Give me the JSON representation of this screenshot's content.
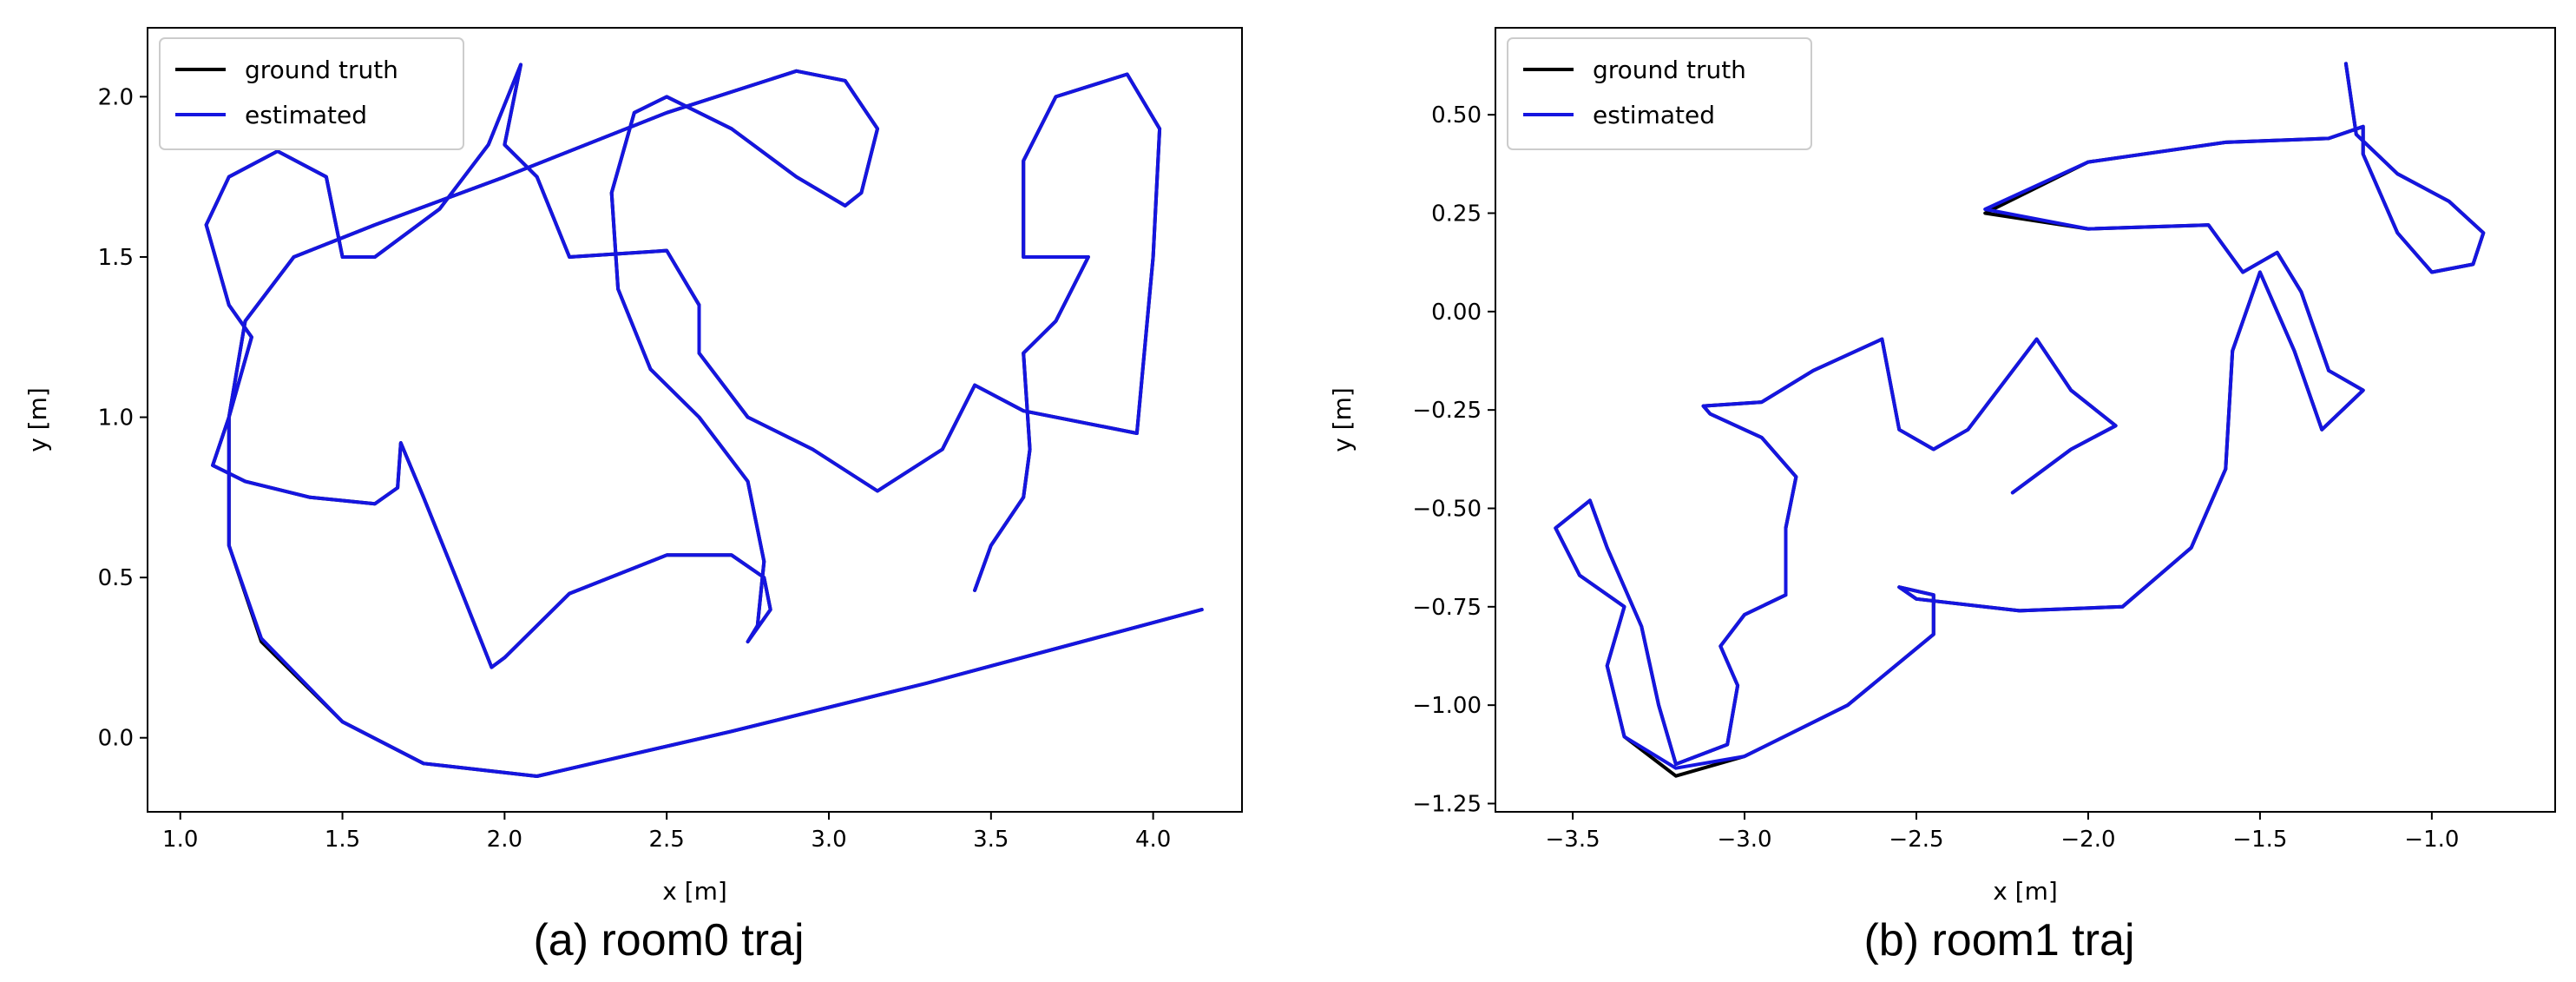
{
  "chart_data": [
    {
      "type": "line",
      "caption": "(a) room0 traj",
      "xlabel": "x [m]",
      "ylabel": "y [m]",
      "legend": "upper left",
      "xlim": [
        0.899,
        4.274
      ],
      "ylim": [
        -0.231,
        2.215
      ],
      "xticks": [
        {
          "value": 1.0,
          "label": "1.0"
        },
        {
          "value": 1.5,
          "label": "1.5"
        },
        {
          "value": 2.0,
          "label": "2.0"
        },
        {
          "value": 2.5,
          "label": "2.5"
        },
        {
          "value": 3.0,
          "label": "3.0"
        },
        {
          "value": 3.5,
          "label": "3.5"
        },
        {
          "value": 4.0,
          "label": "4.0"
        }
      ],
      "yticks": [
        {
          "value": 0.0,
          "label": "0.0"
        },
        {
          "value": 0.5,
          "label": "0.5"
        },
        {
          "value": 1.0,
          "label": "1.0"
        },
        {
          "value": 1.5,
          "label": "1.5"
        },
        {
          "value": 2.0,
          "label": "2.0"
        }
      ],
      "series": [
        {
          "name": "ground truth",
          "color": "#000000",
          "x": [
            4.15,
            3.3,
            2.7,
            2.1,
            1.75,
            1.5,
            1.25,
            1.15,
            1.15,
            1.2,
            1.35,
            1.6,
            2.0,
            2.5,
            2.9,
            3.05,
            3.15,
            3.1,
            3.05,
            2.9,
            2.7,
            2.5,
            2.4,
            2.33,
            2.35,
            2.45,
            2.6,
            2.75,
            2.8,
            2.78,
            2.75,
            2.82,
            2.8,
            2.7,
            2.5,
            2.2,
            2.0,
            1.96,
            1.85,
            1.75,
            1.68,
            1.67,
            1.6,
            1.4,
            1.2,
            1.1,
            1.15,
            1.22,
            1.15,
            1.08,
            1.15,
            1.3,
            1.45,
            1.5,
            1.6,
            1.8,
            1.95,
            2.05,
            2.0,
            2.1,
            2.2,
            2.5,
            2.6,
            2.6,
            2.75,
            2.95,
            3.15,
            3.35,
            3.45,
            3.6,
            3.8,
            3.95,
            4.0,
            4.02,
            3.92,
            3.7,
            3.6,
            3.6,
            3.8,
            3.7,
            3.6,
            3.62,
            3.6,
            3.5,
            3.45
          ],
          "values": [
            0.4,
            0.17,
            0.02,
            -0.12,
            -0.08,
            0.05,
            0.3,
            0.6,
            1.0,
            1.3,
            1.5,
            1.6,
            1.75,
            1.95,
            2.08,
            2.05,
            1.9,
            1.7,
            1.66,
            1.75,
            1.9,
            2.0,
            1.95,
            1.7,
            1.4,
            1.15,
            1.0,
            0.8,
            0.55,
            0.35,
            0.3,
            0.4,
            0.5,
            0.57,
            0.57,
            0.45,
            0.25,
            0.22,
            0.5,
            0.75,
            0.92,
            0.78,
            0.73,
            0.75,
            0.8,
            0.85,
            1.0,
            1.25,
            1.35,
            1.6,
            1.75,
            1.83,
            1.75,
            1.5,
            1.5,
            1.65,
            1.85,
            2.1,
            1.85,
            1.75,
            1.5,
            1.52,
            1.35,
            1.2,
            1.0,
            0.9,
            0.77,
            0.9,
            1.1,
            1.02,
            0.98,
            0.95,
            1.5,
            1.9,
            2.07,
            2.0,
            1.8,
            1.5,
            1.5,
            1.3,
            1.2,
            0.9,
            0.75,
            0.6,
            0.46
          ]
        },
        {
          "name": "estimated",
          "color": "#1515e0",
          "x": [
            4.15,
            3.3,
            2.7,
            2.1,
            1.75,
            1.5,
            1.25,
            1.15,
            1.15,
            1.2,
            1.35,
            1.6,
            2.0,
            2.5,
            2.9,
            3.05,
            3.15,
            3.1,
            3.05,
            2.9,
            2.7,
            2.5,
            2.4,
            2.33,
            2.35,
            2.45,
            2.6,
            2.75,
            2.8,
            2.78,
            2.75,
            2.82,
            2.8,
            2.7,
            2.5,
            2.2,
            2.0,
            1.96,
            1.85,
            1.75,
            1.68,
            1.67,
            1.6,
            1.4,
            1.2,
            1.1,
            1.15,
            1.22,
            1.15,
            1.08,
            1.15,
            1.3,
            1.45,
            1.5,
            1.6,
            1.8,
            1.95,
            2.05,
            2.0,
            2.1,
            2.2,
            2.5,
            2.6,
            2.6,
            2.75,
            2.95,
            3.15,
            3.35,
            3.45,
            3.6,
            3.8,
            3.95,
            4.0,
            4.02,
            3.92,
            3.7,
            3.6,
            3.6,
            3.8,
            3.7,
            3.6,
            3.62,
            3.6,
            3.5,
            3.45
          ],
          "values": [
            0.4,
            0.17,
            0.02,
            -0.12,
            -0.08,
            0.05,
            0.31,
            0.6,
            1.0,
            1.3,
            1.5,
            1.6,
            1.75,
            1.95,
            2.08,
            2.05,
            1.9,
            1.7,
            1.66,
            1.75,
            1.9,
            2.0,
            1.95,
            1.7,
            1.4,
            1.15,
            1.0,
            0.8,
            0.55,
            0.35,
            0.3,
            0.4,
            0.5,
            0.57,
            0.57,
            0.45,
            0.25,
            0.22,
            0.5,
            0.75,
            0.92,
            0.78,
            0.73,
            0.75,
            0.8,
            0.85,
            1.0,
            1.25,
            1.35,
            1.6,
            1.75,
            1.83,
            1.75,
            1.5,
            1.5,
            1.65,
            1.85,
            2.1,
            1.85,
            1.75,
            1.5,
            1.52,
            1.35,
            1.2,
            1.0,
            0.9,
            0.77,
            0.9,
            1.1,
            1.02,
            0.98,
            0.95,
            1.5,
            1.9,
            2.07,
            2.0,
            1.8,
            1.5,
            1.5,
            1.3,
            1.2,
            0.9,
            0.75,
            0.6,
            0.46
          ]
        }
      ]
    },
    {
      "type": "line",
      "caption": "(b) room1 traj",
      "xlabel": "x [m]",
      "ylabel": "y [m]",
      "legend": "upper left",
      "xlim": [
        -3.725,
        -0.641
      ],
      "ylim": [
        -1.271,
        0.721
      ],
      "xticks": [
        {
          "value": -3.5,
          "label": "−3.5"
        },
        {
          "value": -3.0,
          "label": "−3.0"
        },
        {
          "value": -2.5,
          "label": "−2.5"
        },
        {
          "value": -2.0,
          "label": "−2.0"
        },
        {
          "value": -1.5,
          "label": "−1.5"
        },
        {
          "value": -1.0,
          "label": "−1.0"
        }
      ],
      "yticks": [
        {
          "value": 0.5,
          "label": "0.50"
        },
        {
          "value": 0.25,
          "label": "0.25"
        },
        {
          "value": 0.0,
          "label": "0.00"
        },
        {
          "value": -0.25,
          "label": "−0.25"
        },
        {
          "value": -0.5,
          "label": "−0.50"
        },
        {
          "value": -0.75,
          "label": "−0.75"
        },
        {
          "value": -1.0,
          "label": "−1.00"
        },
        {
          "value": -1.25,
          "label": "−1.25"
        }
      ],
      "series": [
        {
          "name": "ground truth",
          "color": "#000000",
          "x": [
            -1.25,
            -1.22,
            -1.1,
            -0.95,
            -0.85,
            -0.88,
            -1.0,
            -1.1,
            -1.2,
            -1.2,
            -1.3,
            -1.6,
            -2.0,
            -2.3,
            -2.0,
            -1.65,
            -1.55,
            -1.45,
            -1.38,
            -1.3,
            -1.2,
            -1.32,
            -1.4,
            -1.5,
            -1.58,
            -1.6,
            -1.7,
            -1.9,
            -2.2,
            -2.5,
            -2.55,
            -2.45,
            -2.45,
            -2.7,
            -3.0,
            -3.2,
            -3.35,
            -3.4,
            -3.35,
            -3.48,
            -3.55,
            -3.45,
            -3.4,
            -3.3,
            -3.25,
            -3.2,
            -3.05,
            -3.02,
            -3.07,
            -3.0,
            -2.88,
            -2.88,
            -2.85,
            -2.95,
            -3.1,
            -3.12,
            -2.95,
            -2.8,
            -2.6,
            -2.55,
            -2.45,
            -2.35,
            -2.15,
            -2.05,
            -1.92,
            -2.05,
            -2.22
          ],
          "values": [
            0.63,
            0.45,
            0.35,
            0.28,
            0.2,
            0.12,
            0.1,
            0.2,
            0.4,
            0.47,
            0.44,
            0.43,
            0.38,
            0.25,
            0.21,
            0.22,
            0.1,
            0.15,
            0.05,
            -0.15,
            -0.2,
            -0.3,
            -0.1,
            0.1,
            -0.1,
            -0.4,
            -0.6,
            -0.75,
            -0.76,
            -0.73,
            -0.7,
            -0.72,
            -0.82,
            -1.0,
            -1.13,
            -1.18,
            -1.08,
            -0.9,
            -0.75,
            -0.67,
            -0.55,
            -0.48,
            -0.6,
            -0.8,
            -1.0,
            -1.15,
            -1.1,
            -0.95,
            -0.85,
            -0.77,
            -0.72,
            -0.55,
            -0.42,
            -0.32,
            -0.26,
            -0.24,
            -0.23,
            -0.15,
            -0.07,
            -0.3,
            -0.35,
            -0.3,
            -0.07,
            -0.2,
            -0.29,
            -0.35,
            -0.46
          ]
        },
        {
          "name": "estimated",
          "color": "#1515e0",
          "x": [
            -1.25,
            -1.22,
            -1.1,
            -0.95,
            -0.85,
            -0.88,
            -1.0,
            -1.1,
            -1.2,
            -1.2,
            -1.3,
            -1.6,
            -2.0,
            -2.3,
            -2.0,
            -1.65,
            -1.55,
            -1.45,
            -1.38,
            -1.3,
            -1.2,
            -1.32,
            -1.4,
            -1.5,
            -1.58,
            -1.6,
            -1.7,
            -1.9,
            -2.2,
            -2.5,
            -2.55,
            -2.45,
            -2.45,
            -2.7,
            -3.0,
            -3.2,
            -3.35,
            -3.4,
            -3.35,
            -3.48,
            -3.55,
            -3.45,
            -3.4,
            -3.3,
            -3.25,
            -3.2,
            -3.05,
            -3.02,
            -3.07,
            -3.0,
            -2.88,
            -2.88,
            -2.85,
            -2.95,
            -3.1,
            -3.12,
            -2.95,
            -2.8,
            -2.6,
            -2.55,
            -2.45,
            -2.35,
            -2.15,
            -2.05,
            -1.92,
            -2.05,
            -2.22
          ],
          "values": [
            0.63,
            0.45,
            0.35,
            0.28,
            0.2,
            0.12,
            0.1,
            0.2,
            0.4,
            0.47,
            0.44,
            0.43,
            0.38,
            0.26,
            0.21,
            0.22,
            0.1,
            0.15,
            0.05,
            -0.15,
            -0.2,
            -0.3,
            -0.1,
            0.1,
            -0.1,
            -0.4,
            -0.6,
            -0.75,
            -0.76,
            -0.73,
            -0.7,
            -0.72,
            -0.82,
            -1.0,
            -1.13,
            -1.16,
            -1.08,
            -0.9,
            -0.75,
            -0.67,
            -0.55,
            -0.48,
            -0.6,
            -0.8,
            -1.0,
            -1.15,
            -1.1,
            -0.95,
            -0.85,
            -0.77,
            -0.72,
            -0.55,
            -0.42,
            -0.32,
            -0.26,
            -0.24,
            -0.23,
            -0.15,
            -0.07,
            -0.3,
            -0.35,
            -0.3,
            -0.07,
            -0.2,
            -0.29,
            -0.35,
            -0.46
          ]
        }
      ]
    }
  ]
}
